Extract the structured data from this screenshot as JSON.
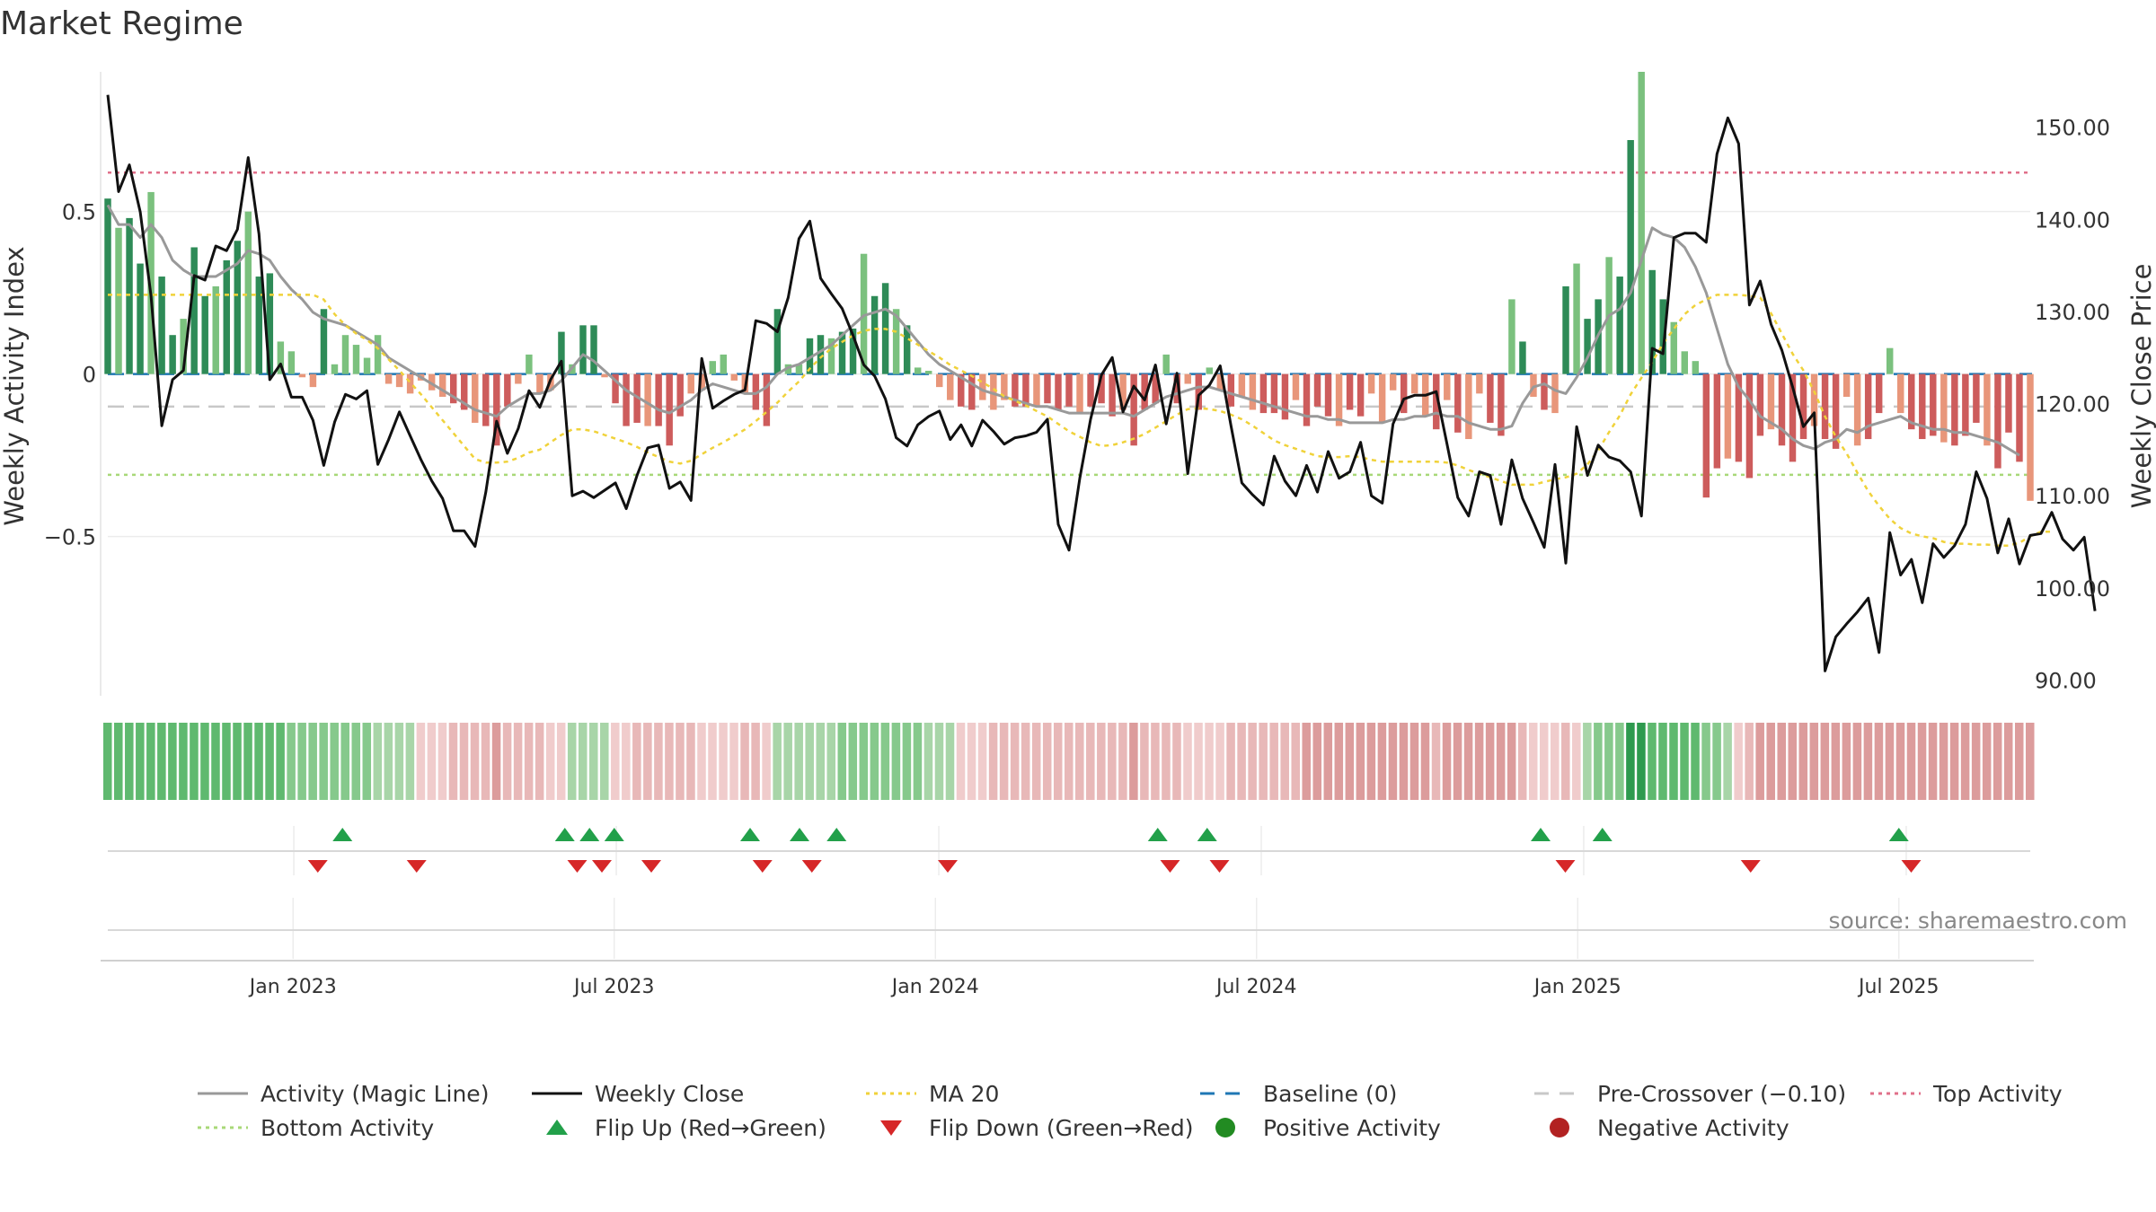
{
  "chart_data": {
    "type": "bar+line",
    "title": "Market Regime",
    "source_label": "source: sharemaestro.com",
    "ylabel_left": "Weekly Activity Index",
    "ylabel_right": "Weekly Close Price",
    "left_axis": {
      "range": [
        -0.99,
        0.93
      ],
      "ticks": [
        0.5,
        0,
        -0.5
      ],
      "tick_labels": [
        "0.5",
        "0",
        "−0.5"
      ]
    },
    "right_axis": {
      "range": [
        88.3,
        156.0
      ],
      "ticks": [
        90,
        100,
        110,
        120,
        130,
        140,
        150
      ],
      "tick_labels": [
        "90.00",
        "100.00",
        "110.00",
        "120.00",
        "130.00",
        "140.00",
        "150.00"
      ]
    },
    "x_axis": {
      "start_index": 0,
      "end_index": 155,
      "tick_positions": [
        15,
        41,
        67,
        93,
        119,
        145
      ],
      "tick_labels": [
        "Jan 2023",
        "Jul 2023",
        "Jan 2024",
        "Jul 2024",
        "Jan 2025",
        "Jul 2025"
      ]
    },
    "reference_lines": {
      "baseline": 0,
      "pre_crossover": -0.1,
      "top_activity": 0.62,
      "bottom_activity": -0.31
    },
    "series": [
      {
        "name": "Weekly Activity Index (bars)",
        "type": "bar",
        "values": [
          0.54,
          0.45,
          0.48,
          0.34,
          0.56,
          0.3,
          0.12,
          0.17,
          0.39,
          0.24,
          0.27,
          0.35,
          0.41,
          0.5,
          0.3,
          0.31,
          0.1,
          0.07,
          -0.01,
          -0.04,
          0.2,
          0.03,
          0.12,
          0.09,
          0.05,
          0.12,
          -0.03,
          -0.04,
          -0.06,
          -0.02,
          -0.05,
          -0.07,
          -0.09,
          -0.11,
          -0.15,
          -0.16,
          -0.22,
          -0.1,
          -0.03,
          0.06,
          -0.06,
          -0.05,
          0.13,
          0.03,
          0.15,
          0.15,
          -0.01,
          -0.09,
          -0.16,
          -0.15,
          -0.16,
          -0.16,
          -0.22,
          -0.13,
          -0.06,
          -0.05,
          0.04,
          0.06,
          -0.02,
          -0.06,
          -0.11,
          -0.16,
          0.2,
          0.03,
          0.03,
          0.11,
          0.12,
          0.11,
          0.13,
          0.14,
          0.37,
          0.24,
          0.28,
          0.2,
          0.15,
          0.02,
          0.01,
          -0.04,
          -0.08,
          -0.1,
          -0.11,
          -0.08,
          -0.11,
          -0.08,
          -0.1,
          -0.1,
          -0.1,
          -0.09,
          -0.11,
          -0.1,
          -0.12,
          -0.1,
          -0.09,
          -0.13,
          -0.11,
          -0.22,
          -0.11,
          -0.09,
          0.06,
          -0.09,
          -0.03,
          -0.11,
          0.02,
          -0.05,
          -0.1,
          -0.07,
          -0.11,
          -0.12,
          -0.12,
          -0.14,
          -0.08,
          -0.16,
          -0.1,
          -0.13,
          -0.16,
          -0.11,
          -0.13,
          -0.06,
          -0.15,
          -0.05,
          -0.12,
          -0.06,
          -0.13,
          -0.17,
          -0.08,
          -0.18,
          -0.2,
          -0.06,
          -0.15,
          -0.19,
          0.23,
          0.1,
          -0.07,
          -0.11,
          -0.12,
          0.27,
          0.34,
          0.17,
          0.23,
          0.36,
          0.3,
          0.72,
          0.93,
          0.32,
          0.23,
          0.16,
          0.07,
          0.04,
          -0.38,
          -0.29,
          -0.26,
          -0.27,
          -0.32,
          -0.19,
          -0.17,
          -0.22,
          -0.27,
          -0.2,
          -0.16,
          -0.2,
          -0.23,
          -0.07,
          -0.22,
          -0.2,
          -0.12,
          0.08,
          -0.12,
          -0.17,
          -0.2,
          -0.19,
          -0.21,
          -0.22,
          -0.19,
          -0.15,
          -0.22,
          -0.29,
          -0.18,
          -0.27,
          -0.39
        ],
        "colors": {
          "positive_strong": "#2e8b57",
          "positive_weak": "#7bc17e",
          "negative_strong": "#cd5c5c",
          "negative_weak": "#e8967a"
        }
      },
      {
        "name": "Activity (Magic Line)",
        "type": "line",
        "values": [
          0.52,
          0.46,
          0.46,
          0.42,
          0.46,
          0.42,
          0.35,
          0.32,
          0.3,
          0.3,
          0.3,
          0.32,
          0.34,
          0.38,
          0.37,
          0.35,
          0.3,
          0.26,
          0.23,
          0.19,
          0.17,
          0.16,
          0.15,
          0.13,
          0.11,
          0.09,
          0.05,
          0.03,
          0.01,
          -0.01,
          -0.03,
          -0.05,
          -0.07,
          -0.09,
          -0.11,
          -0.12,
          -0.13,
          -0.1,
          -0.08,
          -0.06,
          -0.06,
          -0.05,
          -0.02,
          0.02,
          0.06,
          0.04,
          0.01,
          -0.02,
          -0.05,
          -0.07,
          -0.09,
          -0.11,
          -0.12,
          -0.1,
          -0.08,
          -0.05,
          -0.03,
          -0.04,
          -0.05,
          -0.06,
          -0.06,
          -0.04,
          0.0,
          0.02,
          0.03,
          0.05,
          0.07,
          0.09,
          0.12,
          0.15,
          0.18,
          0.19,
          0.2,
          0.18,
          0.14,
          0.1,
          0.06,
          0.03,
          0.01,
          -0.01,
          -0.03,
          -0.05,
          -0.06,
          -0.07,
          -0.08,
          -0.09,
          -0.1,
          -0.1,
          -0.11,
          -0.12,
          -0.12,
          -0.12,
          -0.12,
          -0.12,
          -0.12,
          -0.13,
          -0.11,
          -0.09,
          -0.07,
          -0.06,
          -0.05,
          -0.04,
          -0.04,
          -0.05,
          -0.06,
          -0.07,
          -0.08,
          -0.09,
          -0.1,
          -0.11,
          -0.12,
          -0.13,
          -0.13,
          -0.14,
          -0.14,
          -0.15,
          -0.15,
          -0.15,
          -0.15,
          -0.14,
          -0.14,
          -0.13,
          -0.13,
          -0.12,
          -0.13,
          -0.13,
          -0.15,
          -0.16,
          -0.17,
          -0.17,
          -0.16,
          -0.09,
          -0.04,
          -0.03,
          -0.05,
          -0.06,
          -0.01,
          0.05,
          0.12,
          0.18,
          0.2,
          0.25,
          0.35,
          0.45,
          0.43,
          0.42,
          0.39,
          0.33,
          0.25,
          0.14,
          0.03,
          -0.04,
          -0.08,
          -0.13,
          -0.15,
          -0.17,
          -0.2,
          -0.22,
          -0.23,
          -0.21,
          -0.2,
          -0.17,
          -0.18,
          -0.16,
          -0.15,
          -0.14,
          -0.13,
          -0.15,
          -0.16,
          -0.17,
          -0.17,
          -0.18,
          -0.18,
          -0.19,
          -0.2,
          -0.21,
          -0.23,
          -0.25
        ]
      },
      {
        "name": "Weekly Close",
        "type": "line",
        "axis": "right",
        "values": [
          153.5,
          143,
          145.9,
          140.8,
          131.7,
          117.6,
          122.6,
          123.6,
          133.9,
          133.4,
          137.1,
          136.6,
          138.9,
          146.7,
          138.4,
          122.6,
          124.3,
          120.7,
          120.7,
          118.2,
          113.3,
          118,
          121,
          120.5,
          121.4,
          113.4,
          116.1,
          119.1,
          116.5,
          113.9,
          111.6,
          109.7,
          106.2,
          106.2,
          104.5,
          110.4,
          118.1,
          114.6,
          117.3,
          121.4,
          119.6,
          122.6,
          124.6,
          110,
          110.5,
          109.8,
          110.6,
          111.4,
          108.6,
          112.2,
          115.2,
          115.5,
          110.8,
          111.5,
          109.5,
          124.9,
          119.5,
          120.3,
          121,
          121.5,
          129,
          128.7,
          127.8,
          131.5,
          137.9,
          139.8,
          133.6,
          131.9,
          130.3,
          127.4,
          124.2,
          123,
          120.5,
          116.3,
          115.4,
          117.7,
          118.6,
          119.2,
          116.1,
          117.7,
          115.4,
          118.2,
          117,
          115.6,
          116.3,
          116.5,
          116.9,
          118.3,
          106.9,
          104.1,
          111.9,
          118.3,
          123.1,
          125,
          119.1,
          121.9,
          120.4,
          124.2,
          117.8,
          123.3,
          112.4,
          120.9,
          122,
          124.1,
          117.6,
          111.4,
          110.1,
          109,
          114.3,
          111.6,
          110,
          113.3,
          110.4,
          114.8,
          111.9,
          112.6,
          115.8,
          110,
          109.2,
          117.8,
          120.5,
          120.9,
          120.9,
          121.3,
          115.6,
          109.8,
          107.8,
          112.6,
          112.2,
          106.9,
          113.9,
          109.7,
          107.1,
          104.4,
          113.4,
          102.7,
          117.5,
          112.2,
          115.5,
          114.2,
          113.8,
          112.6,
          107.8,
          126,
          125.4,
          138,
          138.5,
          138.5,
          137.5,
          147.1,
          151,
          148.2,
          130.7,
          133.3,
          128.6,
          125.8,
          121.8,
          117.5,
          119,
          91,
          94.7,
          96.1,
          97.4,
          98.9,
          93,
          106,
          101.4,
          103.1,
          98.4,
          104.8,
          103.3,
          104.6,
          106.9,
          112.6,
          109.7,
          103.8,
          107.5,
          102.6,
          105.7,
          105.9,
          108.2,
          105.3,
          104.1,
          105.5,
          97.5
        ]
      },
      {
        "name": "MA 20",
        "type": "line",
        "axis": "right",
        "values": [
          131.8,
          131.8,
          131.8,
          131.8,
          131.8,
          131.8,
          131.8,
          131.8,
          131.8,
          131.8,
          131.8,
          131.8,
          131.8,
          131.8,
          131.8,
          131.8,
          131.8,
          131.8,
          131.8,
          131.8,
          131.3,
          129.7,
          128.5,
          127.6,
          126.9,
          126,
          124.8,
          123.6,
          122.3,
          121,
          119.6,
          118.2,
          116.8,
          115.4,
          114,
          113.6,
          113.6,
          113.7,
          114.1,
          114.7,
          115,
          115.8,
          116.6,
          117.2,
          117.2,
          117,
          116.6,
          116.2,
          115.8,
          115.3,
          114.7,
          114.2,
          113.7,
          113.5,
          113.8,
          114.5,
          115.2,
          115.8,
          116.5,
          117.2,
          118.1,
          119.1,
          120.1,
          121.3,
          122.4,
          123.8,
          125,
          126,
          126.7,
          127.4,
          127.9,
          128.1,
          128.1,
          127.8,
          127.1,
          126.4,
          125.7,
          125,
          124.2,
          123.6,
          123,
          122.3,
          121.6,
          120.8,
          120.3,
          119.8,
          119.2,
          118.6,
          117.8,
          117,
          116.4,
          115.8,
          115.4,
          115.5,
          115.8,
          116.2,
          116.7,
          117.4,
          118.1,
          118.8,
          119.4,
          119.5,
          119.4,
          119.2,
          118.8,
          118.3,
          117.6,
          116.8,
          116,
          115.5,
          115.1,
          114.7,
          114.3,
          114.2,
          114.2,
          114.3,
          114.2,
          113.9,
          113.7,
          113.7,
          113.7,
          113.7,
          113.7,
          113.7,
          113.6,
          113.3,
          112.8,
          112.4,
          112,
          111.6,
          111.2,
          111.2,
          111.2,
          111.5,
          111.8,
          112,
          112.4,
          113.4,
          114.9,
          116.9,
          118.7,
          121,
          122.8,
          124.5,
          126.5,
          128.1,
          129.7,
          130.7,
          131.3,
          131.8,
          131.8,
          131.8,
          131.7,
          131.5,
          129.8,
          127.6,
          125.4,
          123.6,
          121.3,
          118.6,
          116.4,
          114.6,
          112.5,
          110.5,
          108.9,
          107.5,
          106.5,
          105.9,
          105.6,
          105.4,
          105,
          104.8,
          104.8,
          104.7,
          104.7,
          104.6,
          104.6,
          104.9,
          105.6,
          106.1,
          106.1
        ]
      }
    ],
    "regime_strip": {
      "label": "Regime heat strip",
      "colors": [
        "#5fb96f",
        "#a8d5a8",
        "#d2e8d0",
        "#d89a9a",
        "#e8b0b0",
        "#f0cccc"
      ]
    },
    "flip_up_indices": [
      19,
      37,
      39,
      41,
      52,
      56,
      59,
      85,
      89,
      116,
      121,
      145
    ],
    "flip_down_indices": [
      17,
      25,
      38,
      40,
      44,
      53,
      57,
      68,
      86,
      90,
      118,
      133,
      146
    ],
    "legend": [
      {
        "label": "Activity (Magic Line)",
        "style": "line",
        "color": "#999999"
      },
      {
        "label": "Weekly Close",
        "style": "line",
        "color": "#111111"
      },
      {
        "label": "MA 20",
        "style": "dotted",
        "color": "#f0d23a"
      },
      {
        "label": "Baseline (0)",
        "style": "dashed",
        "color": "#1f77b4"
      },
      {
        "label": "Pre-Crossover (−0.10)",
        "style": "dashed",
        "color": "#c8c8c8"
      },
      {
        "label": "Top Activity",
        "style": "dotted",
        "color": "#e0708a"
      },
      {
        "label": "Bottom Activity",
        "style": "dotted",
        "color": "#a8d878"
      },
      {
        "label": "Flip Up (Red→Green)",
        "style": "triangle-up",
        "color": "#22a04a"
      },
      {
        "label": "Flip Down (Green→Red)",
        "style": "triangle-down",
        "color": "#d62728"
      },
      {
        "label": "Positive Activity",
        "style": "dot",
        "color": "#228b22"
      },
      {
        "label": "Negative Activity",
        "style": "dot",
        "color": "#b22222"
      }
    ]
  }
}
